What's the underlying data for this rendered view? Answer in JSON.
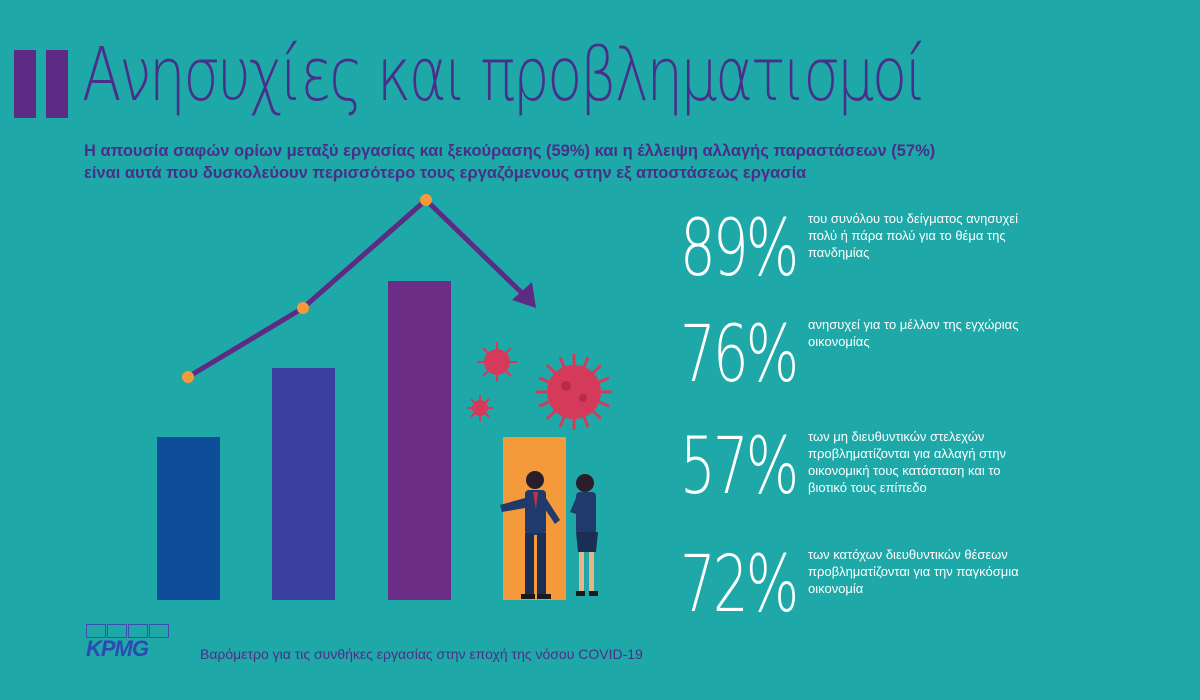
{
  "header": {
    "title": "Ανησυχίες και προβληματισμοί",
    "subtitle_line1": "Η απουσία σαφών ορίων μεταξύ εργασίας και ξεκούρασης (59%) και η έλλειψη αλλαγής παραστάσεων (57%)",
    "subtitle_line2": "είναι αυτά που δυσκολεύουν περισσότερο τους εργαζόμενους στην εξ αποστάσεως εργασία"
  },
  "stats": [
    {
      "value": "89%",
      "text": "του συνόλου του δείγματος ανησυχεί πολύ ή πάρα πολύ για το θέμα της πανδημίας"
    },
    {
      "value": "76%",
      "text": "ανησυχεί για το μέλλον της εγχώριας οικονομίας"
    },
    {
      "value": "57%",
      "text": "των μη διευθυντικών στελεχών προβληματίζονται για αλλαγή στην οικονομική τους κατάσταση και το βιοτικό τους επίπεδο"
    },
    {
      "value": "72%",
      "text": "των κατόχων διευθυντικών θέσεων προβληματίζονται για την παγκόσμια οικονομία"
    }
  ],
  "footer": {
    "logo": "KPMG",
    "text": "Βαρόμετρο για τις συνθήκες εργασίας στην εποχή της νόσου COVID-19"
  },
  "colors": {
    "background": "#1ea8a8",
    "purple": "#5d2a84",
    "bar1": "#0f4d9a",
    "bar2": "#3a3e9e",
    "bar3": "#6b2d86",
    "bar4": "#f59a3a",
    "virus": "#d63a5a",
    "dot": "#f59a3a"
  }
}
